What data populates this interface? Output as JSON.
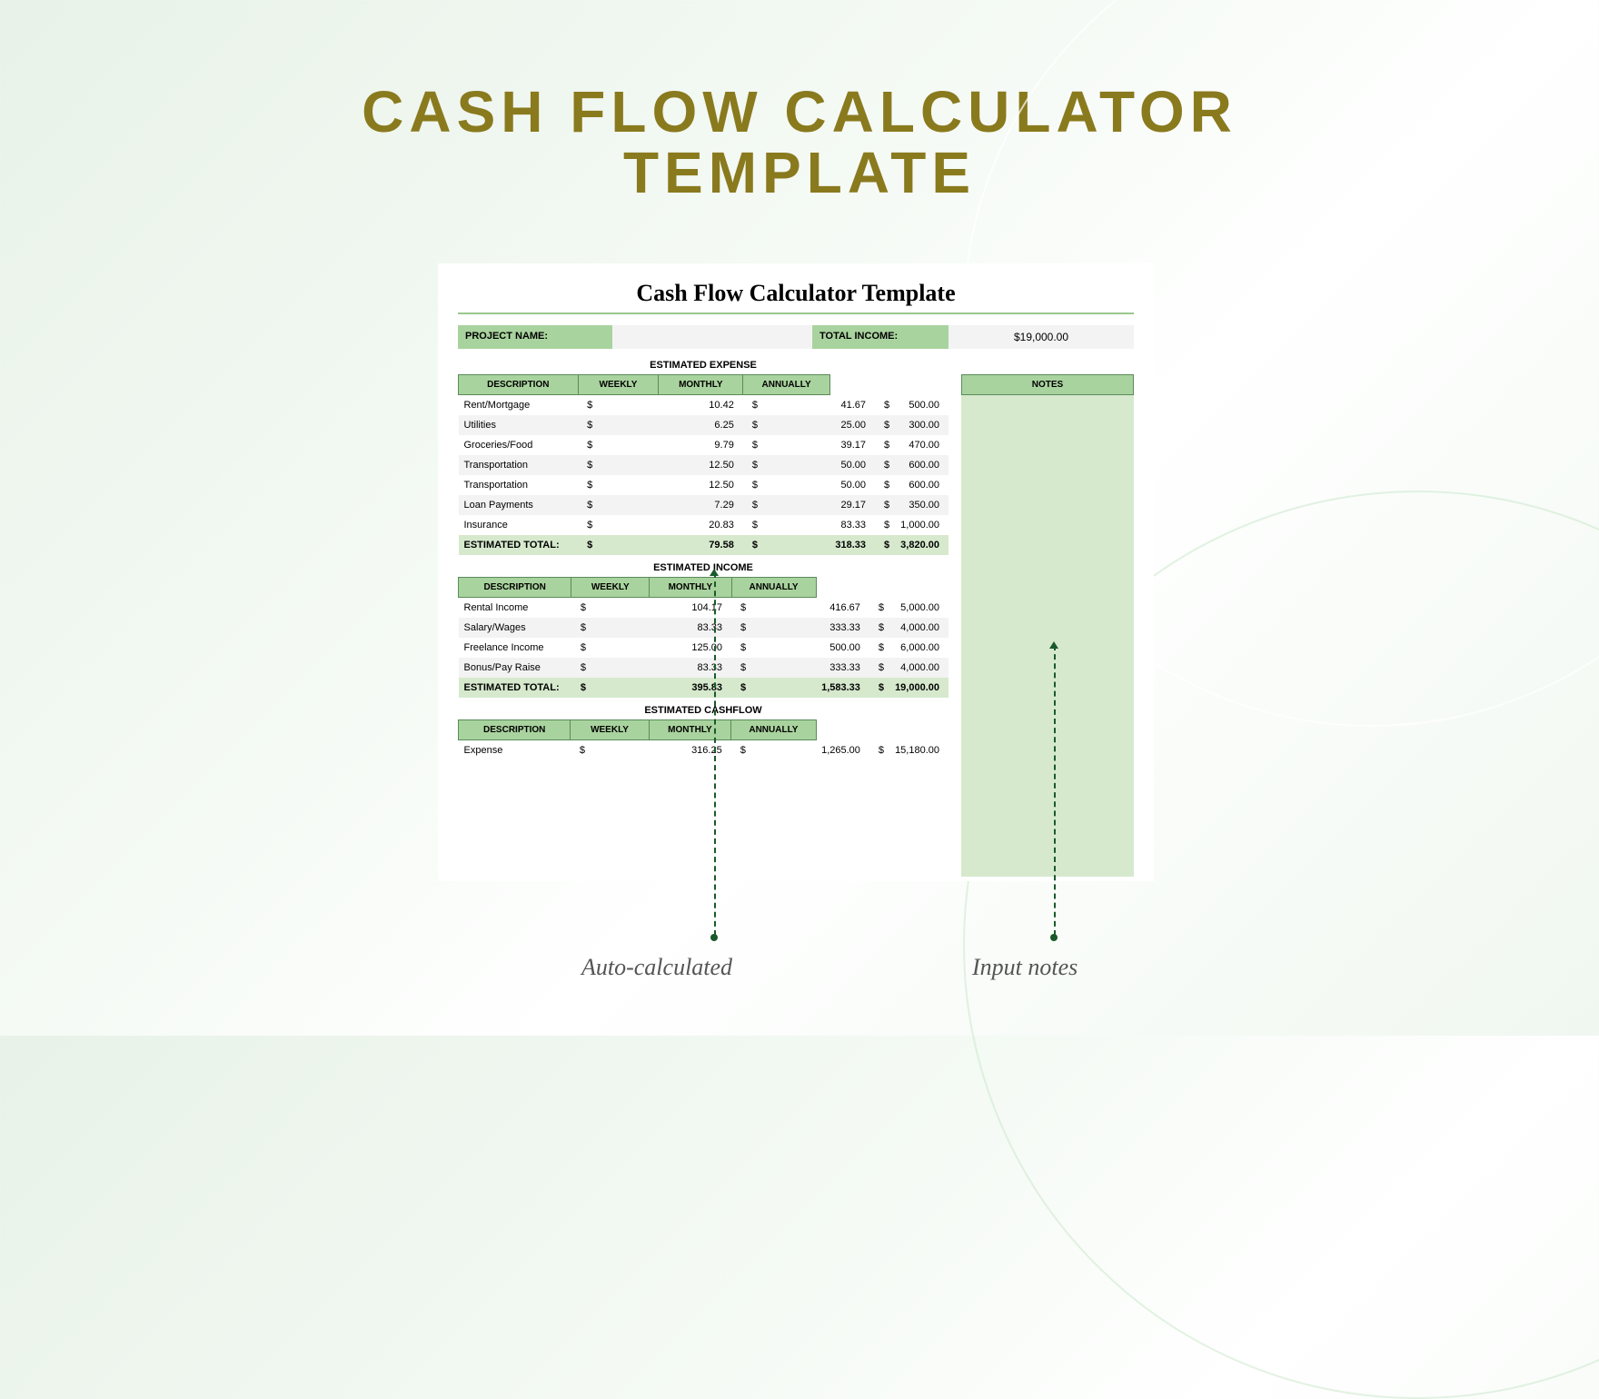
{
  "colors": {
    "title": "#8a7a1e",
    "headerBg": "#a9d39e",
    "headerBorder": "#5a8a5a",
    "rowAlt": "#f3f3f3",
    "totalBg": "#d6e9cd",
    "notesBg": "#d6e9cd",
    "infoLabelBg": "#a9d39e",
    "infoValBg": "#f3f3f3",
    "arrow": "#1a5a2a"
  },
  "pageTitle1": "CASH FLOW CALCULATOR",
  "pageTitle2": "TEMPLATE",
  "sheetTitle": "Cash Flow Calculator Template",
  "projectNameLabel": "PROJECT NAME:",
  "projectNameValue": "",
  "totalIncomeLabel": "TOTAL INCOME:",
  "totalIncomeValue": "$19,000.00",
  "sections": {
    "expense": {
      "title": "ESTIMATED EXPENSE",
      "headers": [
        "DESCRIPTION",
        "WEEKLY",
        "MONTHLY",
        "ANNUALLY"
      ],
      "rows": [
        {
          "desc": "Rent/Mortgage",
          "weekly": "10.42",
          "monthly": "41.67",
          "annually": "500.00"
        },
        {
          "desc": "Utilities",
          "weekly": "6.25",
          "monthly": "25.00",
          "annually": "300.00"
        },
        {
          "desc": "Groceries/Food",
          "weekly": "9.79",
          "monthly": "39.17",
          "annually": "470.00"
        },
        {
          "desc": "Transportation",
          "weekly": "12.50",
          "monthly": "50.00",
          "annually": "600.00"
        },
        {
          "desc": "Transportation",
          "weekly": "12.50",
          "monthly": "50.00",
          "annually": "600.00"
        },
        {
          "desc": "Loan Payments",
          "weekly": "7.29",
          "monthly": "29.17",
          "annually": "350.00"
        },
        {
          "desc": "Insurance",
          "weekly": "20.83",
          "monthly": "83.33",
          "annually": "1,000.00"
        }
      ],
      "totalLabel": "ESTIMATED TOTAL:",
      "total": {
        "weekly": "79.58",
        "monthly": "318.33",
        "annually": "3,820.00"
      }
    },
    "income": {
      "title": "ESTIMATED INCOME",
      "headers": [
        "DESCRIPTION",
        "WEEKLY",
        "MONTHLY",
        "ANNUALLY"
      ],
      "rows": [
        {
          "desc": "Rental Income",
          "weekly": "104.17",
          "monthly": "416.67",
          "annually": "5,000.00"
        },
        {
          "desc": "Salary/Wages",
          "weekly": "83.33",
          "monthly": "333.33",
          "annually": "4,000.00"
        },
        {
          "desc": "Freelance Income",
          "weekly": "125.00",
          "monthly": "500.00",
          "annually": "6,000.00"
        },
        {
          "desc": "Bonus/Pay Raise",
          "weekly": "83.33",
          "monthly": "333.33",
          "annually": "4,000.00"
        }
      ],
      "totalLabel": "ESTIMATED TOTAL:",
      "total": {
        "weekly": "395.83",
        "monthly": "1,583.33",
        "annually": "19,000.00"
      }
    },
    "cashflow": {
      "title": "ESTIMATED CASHFLOW",
      "headers": [
        "DESCRIPTION",
        "WEEKLY",
        "MONTHLY",
        "ANNUALLY"
      ],
      "rows": [
        {
          "desc": "Expense",
          "weekly": "316.25",
          "monthly": "1,265.00",
          "annually": "15,180.00"
        }
      ]
    }
  },
  "notesHeader": "NOTES",
  "callouts": {
    "autoCalc": "Auto-calculated",
    "inputNotes": "Input notes"
  },
  "currencySymbol": "$"
}
